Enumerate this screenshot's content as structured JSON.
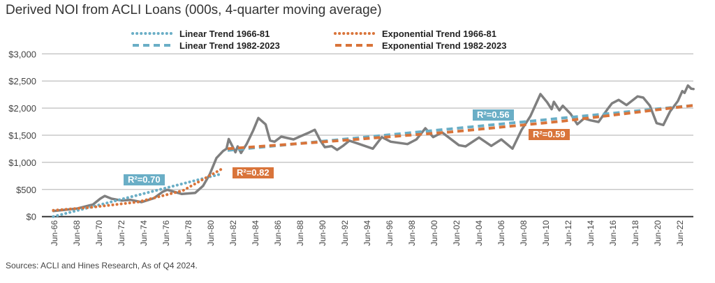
{
  "title": "Derived NOI from ACLI Loans (000s, 4-quarter moving average)",
  "source": "Sources: ACLI and Hines Research, As of Q4 2024.",
  "colors": {
    "noi": "#7f7f7f",
    "linear": "#6aaec6",
    "exponential": "#d9743a"
  },
  "chart_data": {
    "type": "line",
    "title": "Derived NOI from ACLI Loans (000s, 4-quarter moving average)",
    "ylim": [
      0,
      3000
    ],
    "yticks": [
      "$0",
      "$500",
      "$1,000",
      "$1,500",
      "$2,000",
      "$2,500",
      "$3,000"
    ],
    "ytick_values": [
      0,
      500,
      1000,
      1500,
      2000,
      2500,
      3000
    ],
    "xticks": [
      "Jun-66",
      "Jun-68",
      "Jun-70",
      "Jun-72",
      "Jun-74",
      "Jun-76",
      "Jun-78",
      "Jun-80",
      "Jun-82",
      "Jun-84",
      "Jun-86",
      "Jun-88",
      "Jun-90",
      "Jun-92",
      "Jun-94",
      "Jun-96",
      "Jun-98",
      "Jun-00",
      "Jun-02",
      "Jun-04",
      "Jun-06",
      "Jun-08",
      "Jun-10",
      "Jun-12",
      "Jun-14",
      "Jun-16",
      "Jun-18",
      "Jun-20",
      "Jun-22"
    ],
    "grid": true,
    "legend_placement": "top",
    "series": [
      {
        "name": "Derived NOI",
        "style": "solid",
        "x": [
          1966.4,
          1968.5,
          1969.95,
          1970.6,
          1971,
          1971.6,
          1972.5,
          1973.3,
          1974.3,
          1975.4,
          1976.2,
          1976.6,
          1977.9,
          1979.1,
          1979.8,
          1980.4,
          1981,
          1981.6,
          1981.9,
          1982.1,
          1982.7,
          1982.9,
          1983.2,
          1983.7,
          1984.3,
          1984.75,
          1985.4,
          1985.8,
          1986.2,
          1986.8,
          1987.9,
          1988.5,
          1989.3,
          1989.8,
          1990.3,
          1990.7,
          1991.3,
          1991.8,
          1992.3,
          1992.9,
          1995.0,
          1995.8,
          1996.6,
          1998.1,
          1998.9,
          1999.7,
          2000.4,
          2001.2,
          2002.7,
          2003.3,
          2004.5,
          2005.6,
          2006.5,
          2007.5,
          2008.3,
          2009.1,
          2010.0,
          2010.6,
          2011.0,
          2011.2,
          2011.7,
          2012.0,
          2012.7,
          2013.3,
          2013.9,
          2014.5,
          2015.2,
          2016.0,
          2016.4,
          2017.0,
          2017.7,
          2018.7,
          2019.2,
          2019.8,
          2020.4,
          2021.0,
          2021.6,
          2022.3,
          2022.7,
          2022.9,
          2023.2,
          2023.5,
          2023.7
        ],
        "values": [
          103,
          146,
          223,
          330,
          381,
          330,
          296,
          309,
          266,
          339,
          459,
          493,
          416,
          437,
          566,
          780,
          1080,
          1209,
          1251,
          1431,
          1187,
          1294,
          1174,
          1337,
          1594,
          1817,
          1701,
          1401,
          1380,
          1474,
          1423,
          1480,
          1550,
          1600,
          1400,
          1280,
          1300,
          1230,
          1300,
          1400,
          1252,
          1465,
          1380,
          1337,
          1423,
          1628,
          1465,
          1551,
          1316,
          1294,
          1457,
          1303,
          1423,
          1252,
          1594,
          1851,
          2258,
          2108,
          1979,
          2117,
          1959,
          2044,
          1894,
          1702,
          1808,
          1774,
          1744,
          1979,
          2087,
          2152,
          2057,
          2216,
          2194,
          2044,
          1722,
          1689,
          1937,
          2130,
          2314,
          2280,
          2416,
          2357,
          2352
        ]
      },
      {
        "name": "Linear Trend 1966-81",
        "style": "dotted",
        "color": "linear",
        "x": [
          1966.4,
          1981.5
        ],
        "values": [
          0,
          790
        ],
        "r2_label": "R²=0.70"
      },
      {
        "name": "Linear Trend 1982-2023",
        "style": "dashed",
        "color": "linear",
        "x": [
          1982,
          2023.7
        ],
        "values": [
          1220,
          2050
        ],
        "r2_label": "R²=0.56"
      },
      {
        "name": "Exponential Trend 1966-81",
        "style": "dotted",
        "color": "exponential",
        "x": [
          1966.4,
          1970,
          1974,
          1978,
          1981.5
        ],
        "values": [
          115,
          175,
          270,
          480,
          880
        ],
        "r2_label": "R²=0.82"
      },
      {
        "name": "Exponential Trend 1982-2023",
        "style": "dashed",
        "color": "exponential",
        "x": [
          1982,
          1992,
          2002,
          2012,
          2023.7
        ],
        "values": [
          1250,
          1400,
          1560,
          1760,
          2050
        ],
        "r2_label": "R²=0.59"
      }
    ]
  }
}
